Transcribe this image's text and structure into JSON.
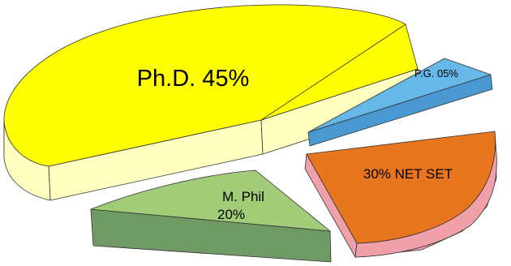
{
  "chart_data": {
    "type": "pie",
    "style": "exploded-3d",
    "title": "",
    "slices": [
      {
        "id": "phd",
        "label_lines": [
          "Ph.D. 45%"
        ],
        "value": 45,
        "top_color": "#ffff00",
        "side_color": "#ffffc0",
        "side_dark": "#ffff99"
      },
      {
        "id": "pg",
        "label_lines": [
          "P.G. 05%"
        ],
        "value": 5,
        "top_color": "#66b8e8",
        "side_color": "#4a98d2",
        "side_dark": "#3d88c0"
      },
      {
        "id": "net",
        "label_lines": [
          "30% NET SET"
        ],
        "value": 30,
        "top_color": "#e8761e",
        "side_color": "#f0a0a8",
        "side_dark": "#e88c96"
      },
      {
        "id": "mphil",
        "label_lines": [
          "M. Phil",
          "20%"
        ],
        "value": 20,
        "top_color": "#a3cc78",
        "side_color": "#6f9a63",
        "side_dark": "#5d8754"
      }
    ]
  }
}
